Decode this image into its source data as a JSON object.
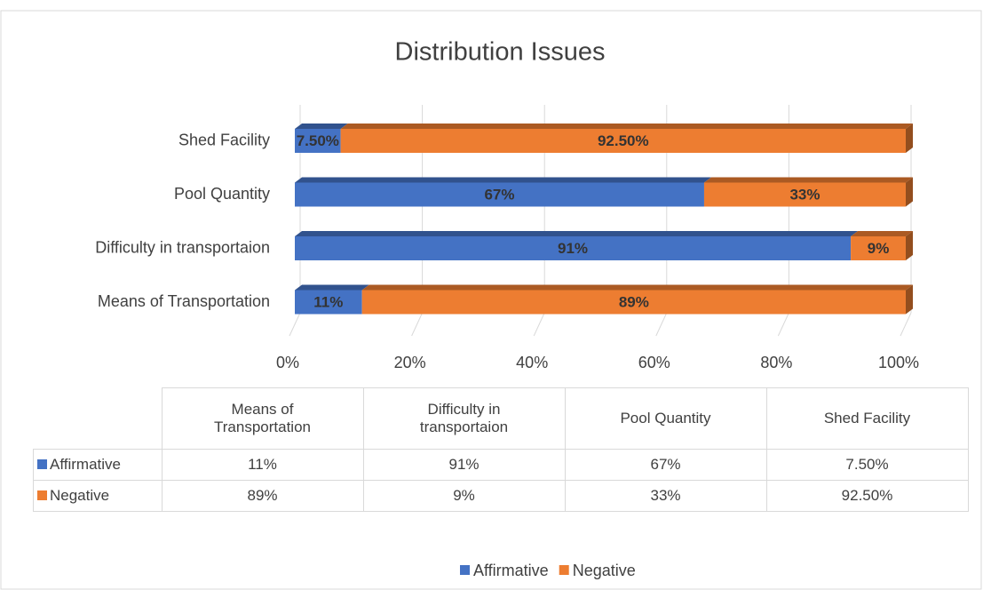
{
  "chart_data": {
    "type": "bar",
    "orientation": "horizontal",
    "stacked": true,
    "title": "Distribution Issues",
    "categories": [
      "Means of Transportation",
      "Difficulty in transportaion",
      "Pool Quantity",
      "Shed Facility"
    ],
    "series": [
      {
        "name": "Affirmative",
        "color": "#4472c4",
        "values": [
          11,
          91,
          67,
          7.5
        ],
        "value_labels": [
          "11%",
          "91%",
          "67%",
          "7.50%"
        ]
      },
      {
        "name": "Negative",
        "color": "#ed7d31",
        "values": [
          89,
          9,
          33,
          92.5
        ],
        "value_labels": [
          "89%",
          "9%",
          "33%",
          "92.50%"
        ]
      }
    ],
    "xlim": [
      0,
      100
    ],
    "xticks": [
      {
        "value": 0,
        "label": "0%"
      },
      {
        "value": 20,
        "label": "20%"
      },
      {
        "value": 40,
        "label": "40%"
      },
      {
        "value": 60,
        "label": "60%"
      },
      {
        "value": 80,
        "label": "80%"
      },
      {
        "value": 100,
        "label": "100%"
      }
    ],
    "grid": true,
    "legend": "bottom",
    "data_table": true
  }
}
